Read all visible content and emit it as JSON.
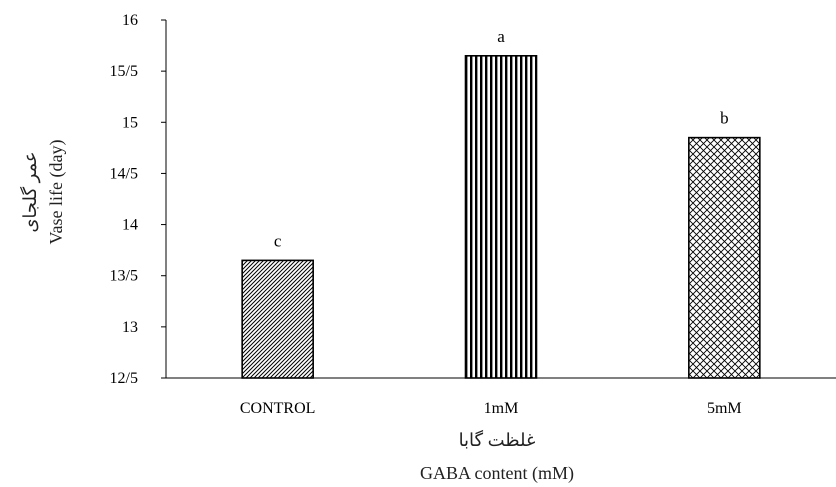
{
  "chart_data": {
    "type": "bar",
    "categories": [
      "CONTROL",
      "1mM",
      "5mM"
    ],
    "values": [
      13.65,
      15.65,
      14.85
    ],
    "data_labels": [
      "c",
      "a",
      "b"
    ],
    "bar_patterns": [
      "diagonal-hatch",
      "vertical-stripes",
      "crosshatch"
    ],
    "ylim": [
      12.5,
      16
    ],
    "yticks": [
      12.5,
      13,
      13.5,
      14,
      14.5,
      15,
      15.5,
      16
    ],
    "ytick_labels": [
      "12/5",
      "13",
      "13/5",
      "14",
      "14/5",
      "15",
      "15/5",
      "16"
    ],
    "ylabel_fa": "عمر گلجای",
    "ylabel_en": "Vase life (day)",
    "xlabel_fa": "غلظت گابا",
    "xlabel_en": "GABA content (mM)",
    "grid": false,
    "colors": {
      "bar_fill": "#ffffff",
      "bar_stroke": "#000000",
      "axis": "#000000"
    }
  }
}
